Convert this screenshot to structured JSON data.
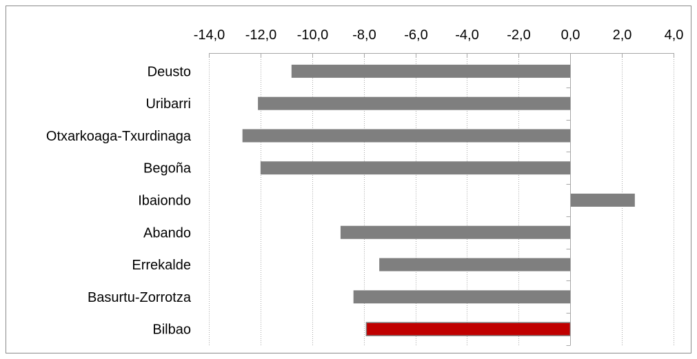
{
  "chart_data": {
    "type": "bar",
    "orientation": "horizontal",
    "categories": [
      "Deusto",
      "Uribarri",
      "Otxarkoaga-Txurdinaga",
      "Begoña",
      "Ibaiondo",
      "Abando",
      "Errekalde",
      "Basurtu-Zorrotza",
      "Bilbao"
    ],
    "values": [
      -10.8,
      -12.1,
      -12.7,
      -12.0,
      2.5,
      -8.9,
      -7.4,
      -8.4,
      -7.9
    ],
    "colors": [
      "#7f7f7f",
      "#7f7f7f",
      "#7f7f7f",
      "#7f7f7f",
      "#7f7f7f",
      "#7f7f7f",
      "#7f7f7f",
      "#7f7f7f",
      "#c00000"
    ],
    "xlim": [
      -14,
      4
    ],
    "xticks": [
      -14,
      -12,
      -10,
      -8,
      -6,
      -4,
      -2,
      0,
      2,
      4
    ],
    "tick_labels": [
      "-14,0",
      "-12,0",
      "-10,0",
      "-8,0",
      "-6,0",
      "-4,0",
      "-2,0",
      "0,0",
      "2,0",
      "4,0"
    ],
    "axis_position": "top",
    "grid": true,
    "grid_style": "dotted-vertical",
    "title": "",
    "xlabel": "",
    "ylabel": ""
  }
}
